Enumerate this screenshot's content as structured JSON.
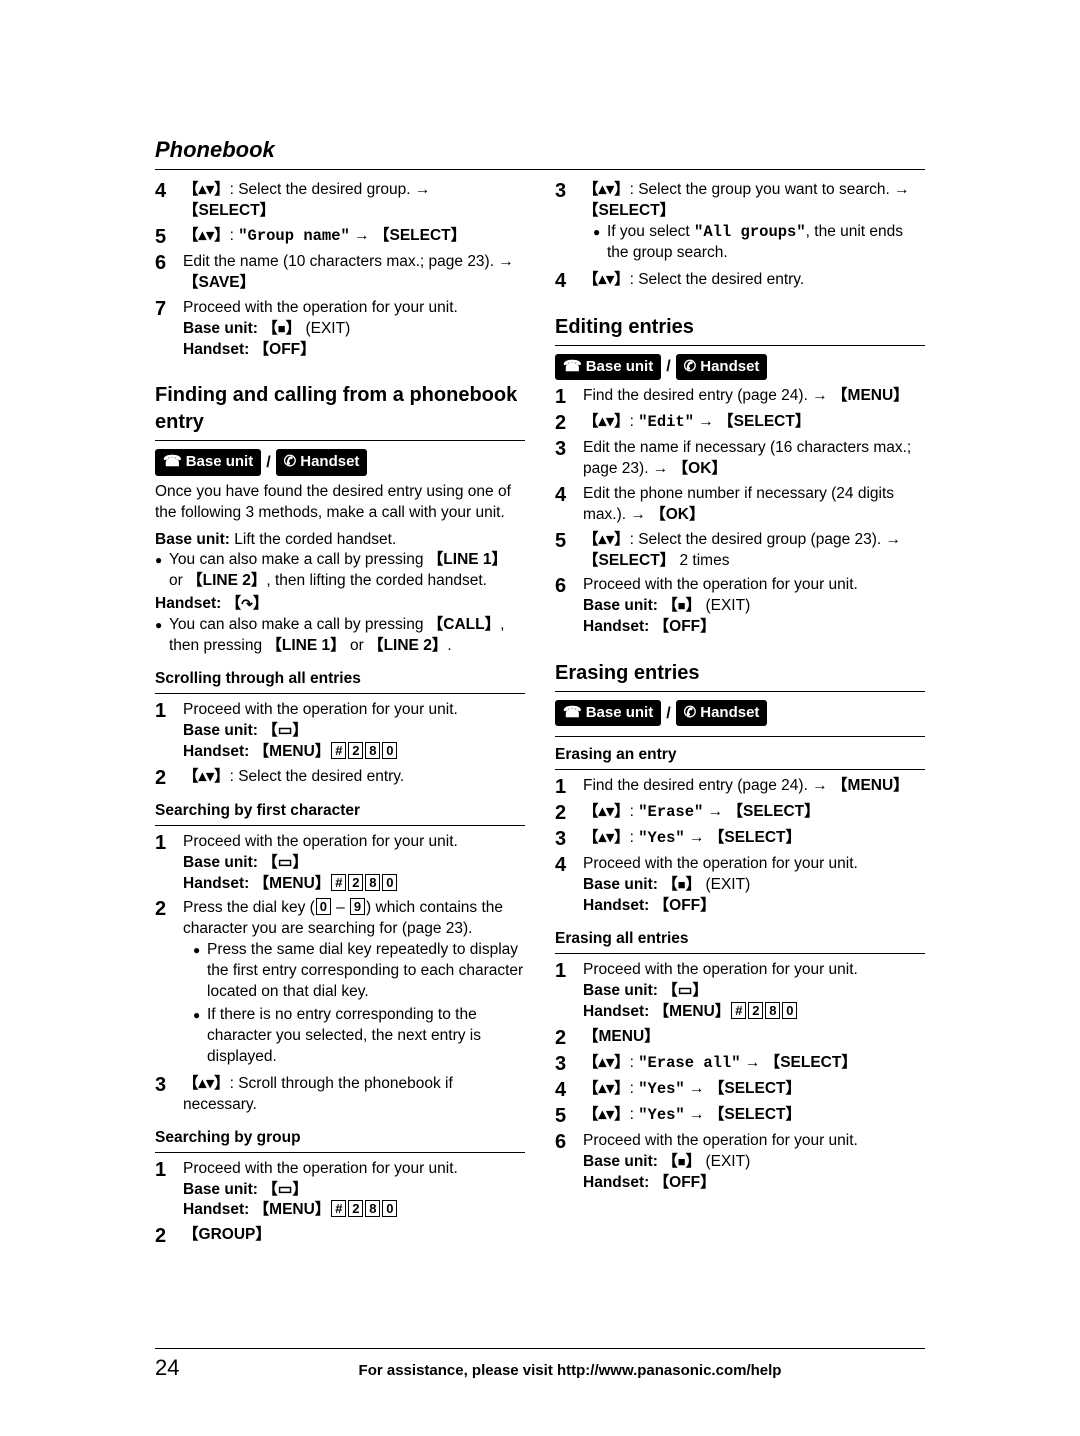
{
  "header": "Phonebook",
  "pageNumber": "24",
  "footerText": "For assistance, please visit http://www.panasonic.com/help",
  "badges": {
    "baseUnit": "Base unit",
    "handset": "Handset"
  },
  "keys": {
    "select": "SELECT",
    "save": "SAVE",
    "off": "OFF",
    "menu": "MENU",
    "line1": "LINE 1",
    "line2": "LINE 2",
    "call": "CALL",
    "group": "GROUP",
    "ok": "OK",
    "exit": "(EXIT)"
  },
  "mono": {
    "groupName": "\"Group name\"",
    "allGroups": "\"All groups\"",
    "edit": "\"Edit\"",
    "erase": "\"Erase\"",
    "yes": "\"Yes\"",
    "eraseAll": "\"Erase all\""
  },
  "left": {
    "step4": "Select the desired group.",
    "step6": "Edit the name (10 characters max.; page 23).",
    "step7": "Proceed with the operation for your unit.",
    "baseUnitLabel": "Base unit:",
    "handsetLabel": "Handset:",
    "findingTitle": "Finding and calling from a phonebook entry",
    "findingIntro": "Once you have found the desired entry using one of the following 3 methods, make a call with your unit.",
    "baseLift": "Lift the corded handset.",
    "bullet1a": "You can also make a call by pressing",
    "bullet1b": "or",
    "bullet1c": ", then lifting the corded handset.",
    "bullet2a": "You can also make a call by pressing",
    "bullet2b": "then pressing",
    "bullet2c": "or",
    "scrollingTitle": "Scrolling through all entries",
    "scroll1": "Proceed with the operation for your unit.",
    "scroll2": "Select the desired entry.",
    "searchFirstTitle": "Searching by first character",
    "sf1": "Proceed with the operation for your unit.",
    "sf2a": "Press the dial key (",
    "sf2b": " – ",
    "sf2c": ") which contains the character you are searching for (page 23).",
    "sf2sub1": "Press the same dial key repeatedly to display the first entry corresponding to each character located on that dial key.",
    "sf2sub2": "If there is no entry corresponding to the character you selected, the next entry is displayed.",
    "sf3": "Scroll through the phonebook if necessary.",
    "searchGroupTitle": "Searching by group",
    "sg1": "Proceed with the operation for your unit."
  },
  "right": {
    "r3a": "Select the group you want to search.",
    "r3sub": "If you select",
    "r3sub2": ", the unit ends the group search.",
    "r4": "Select the desired entry.",
    "editingTitle": "Editing entries",
    "e1": "Find the desired entry (page 24).",
    "e3": "Edit the name if necessary (16 characters max.; page 23).",
    "e4": "Edit the phone number if necessary (24 digits max.).",
    "e5a": "Select the desired group (page 23).",
    "e5b": "2 times",
    "e6": "Proceed with the operation for your unit.",
    "erasingTitle": "Erasing entries",
    "erasingEntryTitle": "Erasing an entry",
    "ee1": "Find the desired entry (page 24).",
    "ee4": "Proceed with the operation for your unit.",
    "erasingAllTitle": "Erasing all entries",
    "ea1": "Proceed with the operation for your unit.",
    "ea6": "Proceed with the operation for your unit."
  }
}
